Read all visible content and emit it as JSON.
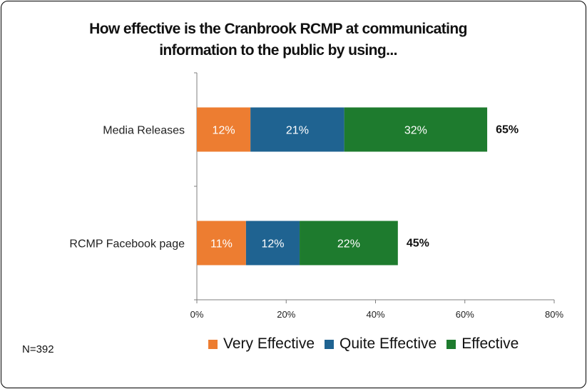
{
  "chart_data": {
    "type": "bar",
    "orientation": "horizontal",
    "stacked": true,
    "title_lines": [
      "How effective is the Cranbrook RCMP at communicating",
      "information to the public by using..."
    ],
    "categories": [
      "Media Releases",
      "RCMP Facebook page"
    ],
    "series": [
      {
        "name": "Very Effective",
        "color": "#ED7D31",
        "values": [
          12,
          11
        ]
      },
      {
        "name": "Quite Effective",
        "color": "#1F6391",
        "values": [
          21,
          12
        ]
      },
      {
        "name": "Effective",
        "color": "#1E7B2E",
        "values": [
          32,
          22
        ]
      }
    ],
    "totals": [
      65,
      45
    ],
    "value_suffix": "%",
    "xlim": [
      0,
      80
    ],
    "xticks": [
      0,
      20,
      40,
      60,
      80
    ],
    "grid": false,
    "legend_position": "bottom"
  },
  "note": "N=392"
}
